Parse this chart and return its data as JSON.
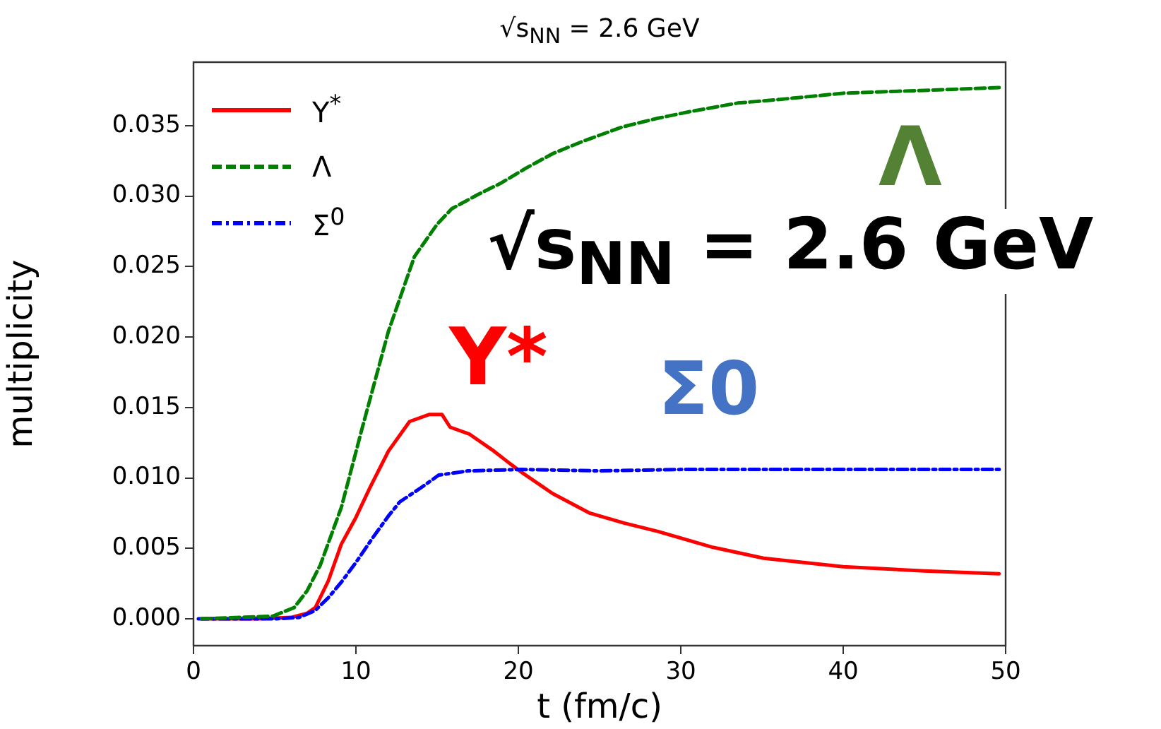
{
  "chart_data": {
    "type": "line",
    "title": "√s$_{NN}$ = 2.6 GeV",
    "xlabel": "t (fm/c)",
    "ylabel": "multiplicity",
    "xlim": [
      0,
      50
    ],
    "xticks": [
      0,
      10,
      20,
      30,
      40,
      50
    ],
    "ylim": [
      -0.0019,
      0.0395
    ],
    "yticks": [
      {
        "value": 0,
        "label": "0.000"
      },
      {
        "value": 0.005,
        "label": "0.005"
      },
      {
        "value": 0.01,
        "label": "0.010"
      },
      {
        "value": 0.015,
        "label": "0.015"
      },
      {
        "value": 0.02,
        "label": "0.020"
      },
      {
        "value": 0.025,
        "label": "0.025"
      },
      {
        "value": 0.03,
        "label": "0.030"
      },
      {
        "value": 0.035,
        "label": "0.035"
      }
    ],
    "grid": false,
    "legend": "top left",
    "marker": "none",
    "series": [
      {
        "name": "Y$^{*}$",
        "color": "#ff0000",
        "line_style": "solid",
        "x": [
          0.5,
          4,
          6,
          7,
          7.5,
          8.3,
          9.1,
          10,
          10.9,
          12,
          13.3,
          14.5,
          15.3,
          15.8,
          17,
          18.5,
          19.5,
          20.2,
          22.1,
          24.4,
          26.5,
          28.6,
          31.9,
          35.1,
          40,
          45,
          49.6
        ],
        "values": [
          0,
          0,
          0.0001,
          0.0004,
          0.0008,
          0.0027,
          0.0053,
          0.0072,
          0.0094,
          0.0119,
          0.014,
          0.0145,
          0.0145,
          0.0136,
          0.0131,
          0.0119,
          0.011,
          0.0104,
          0.0089,
          0.0075,
          0.0068,
          0.0062,
          0.0051,
          0.0043,
          0.0037,
          0.0034,
          0.0032
        ]
      },
      {
        "name": "Λ",
        "color": "#008000",
        "line_style": "dashed",
        "x": [
          0.5,
          4.9,
          6.2,
          7,
          7.8,
          9.1,
          10.4,
          12,
          13.6,
          15,
          15.9,
          17.5,
          18.9,
          20.5,
          22.1,
          24,
          26.4,
          28.5,
          30.6,
          33.5,
          36.5,
          40,
          45,
          49.6
        ],
        "values": [
          0,
          0.0002,
          0.0008,
          0.002,
          0.0038,
          0.0079,
          0.0136,
          0.0204,
          0.0257,
          0.028,
          0.0291,
          0.0301,
          0.0309,
          0.032,
          0.033,
          0.0339,
          0.0349,
          0.0355,
          0.036,
          0.0366,
          0.0369,
          0.0373,
          0.0375,
          0.0377
        ]
      },
      {
        "name": "Σ$^{0}$",
        "color": "#0000ff",
        "line_style": "dashdot",
        "x": [
          0.3,
          5,
          6.5,
          7.5,
          8.3,
          9.1,
          10,
          11,
          12,
          12.7,
          14,
          15.1,
          16.9,
          20.2,
          25,
          30,
          35,
          40,
          45,
          49.6
        ],
        "values": [
          0,
          0,
          0.0001,
          0.0006,
          0.0015,
          0.0026,
          0.004,
          0.0057,
          0.0073,
          0.0083,
          0.0093,
          0.0102,
          0.0105,
          0.0106,
          0.0105,
          0.0106,
          0.0106,
          0.0106,
          0.0106,
          0.0106
        ]
      }
    ],
    "annotations": [
      "√s$_{NN}$ = 2.6 GeV",
      "Λ",
      "Y*",
      "Σ0"
    ]
  }
}
